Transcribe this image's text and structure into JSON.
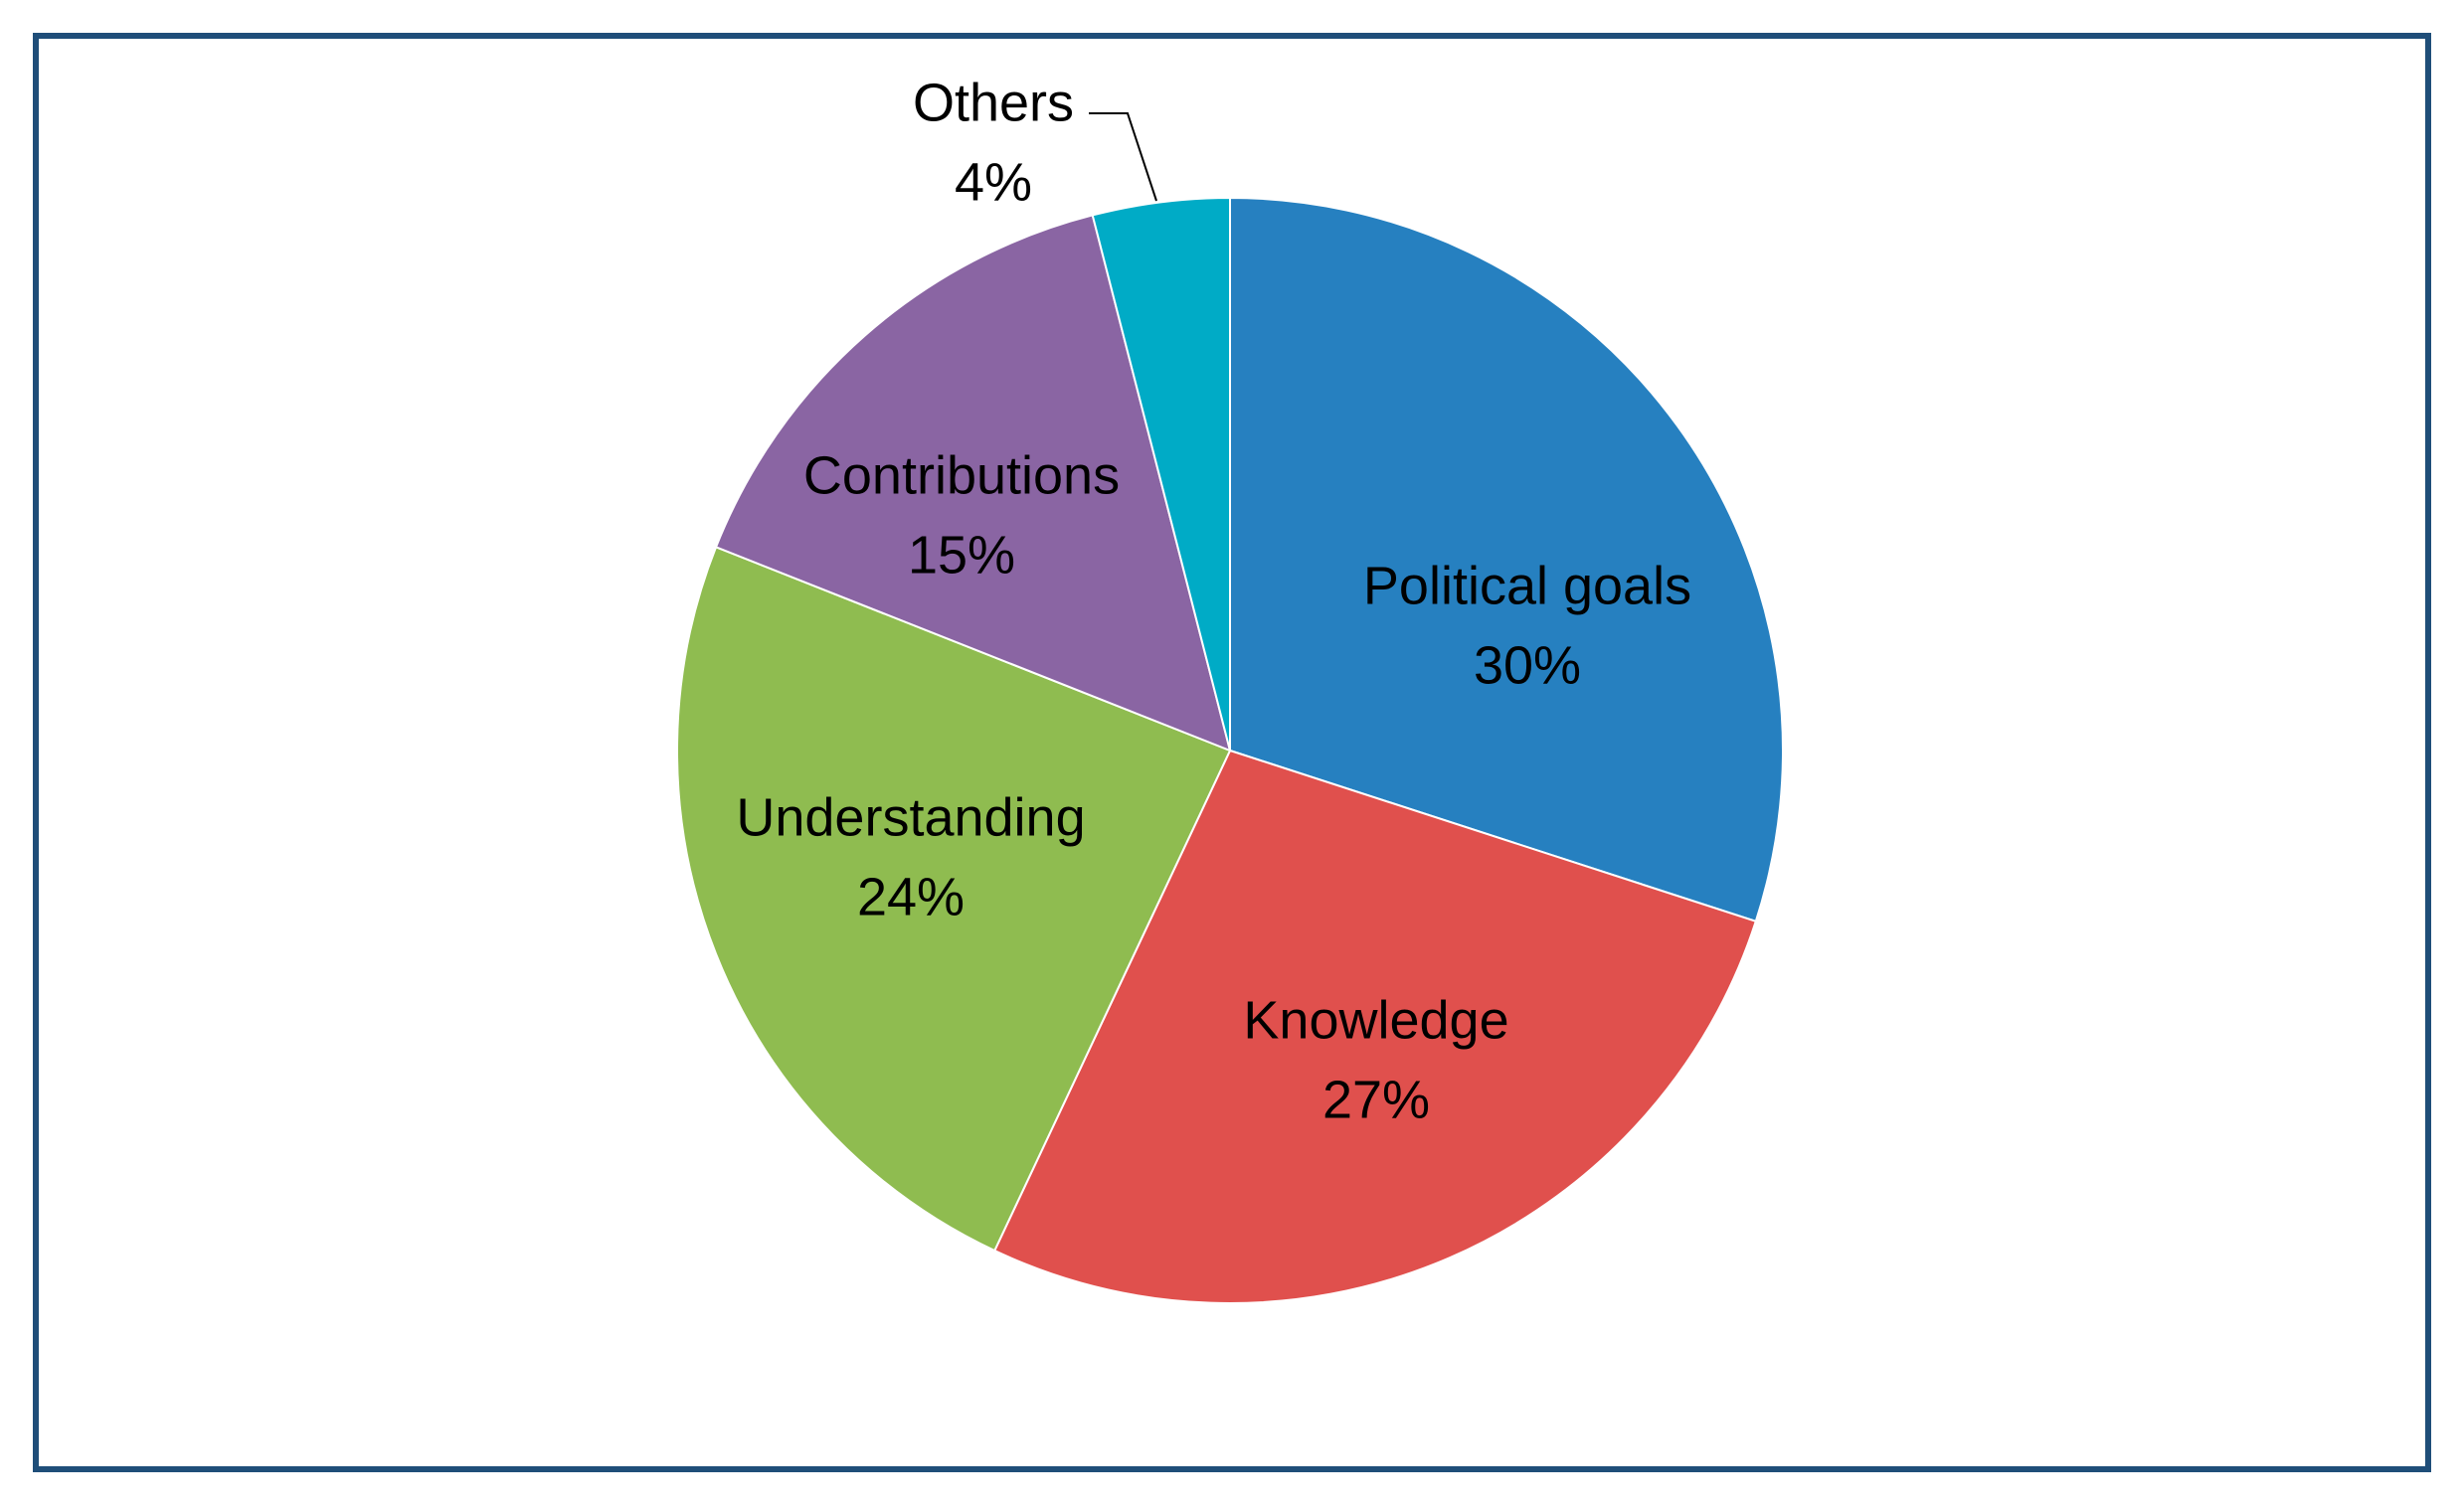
{
  "chart_data": {
    "type": "pie",
    "categories": [
      "Political goals",
      "Knowledge",
      "Understanding",
      "Contributions",
      "Others"
    ],
    "values": [
      30,
      27,
      24,
      15,
      4
    ],
    "value_labels": [
      "30%",
      "27%",
      "24%",
      "15%",
      "4%"
    ],
    "colors": [
      "#2680c0",
      "#e0504d",
      "#8fbc50",
      "#8a65a3",
      "#00abc6"
    ]
  }
}
